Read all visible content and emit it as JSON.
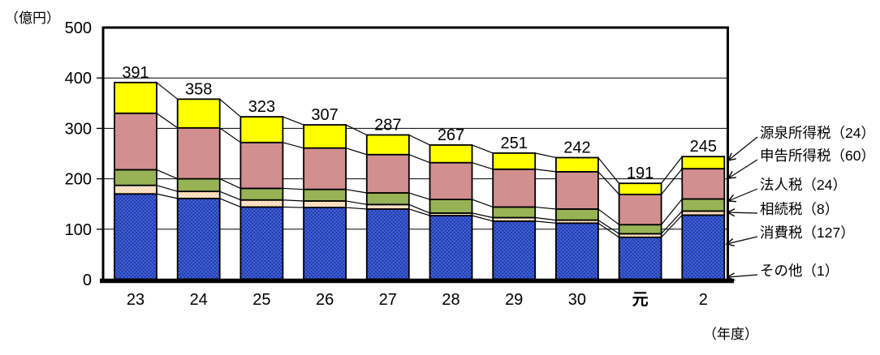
{
  "page": {
    "y_axis_unit": "（億円）",
    "x_axis_unit": "（年度）"
  },
  "chart_data": {
    "type": "bar",
    "stacked": true,
    "title": "",
    "y_axis_unit": "（億円）",
    "x_axis_unit": "（年度）",
    "ylim": [
      0,
      500
    ],
    "y_ticks": [
      0,
      100,
      200,
      300,
      400,
      500
    ],
    "grid": true,
    "legend_position": "right",
    "categories": [
      "23",
      "24",
      "25",
      "26",
      "27",
      "28",
      "29",
      "30",
      "元",
      "2"
    ],
    "bold_categories": [
      "元"
    ],
    "totals": [
      391,
      358,
      323,
      307,
      287,
      267,
      251,
      242,
      191,
      245
    ],
    "series": [
      {
        "name": "その他",
        "color": "#3D5EDF",
        "pattern": "blue-dots",
        "values": [
          1,
          1,
          1,
          1,
          1,
          1,
          1,
          1,
          1,
          1
        ]
      },
      {
        "name": "消費税",
        "color": "#3D5EDF",
        "pattern": "blue-dots",
        "values": [
          169,
          160,
          143,
          142,
          139,
          126,
          115,
          111,
          83,
          127
        ]
      },
      {
        "name": "相続税",
        "color": "#FBD5A9",
        "pattern": "white-dots",
        "values": [
          17,
          14,
          14,
          13,
          9,
          5,
          7,
          6,
          7,
          8
        ]
      },
      {
        "name": "法人税",
        "color": "#97B355",
        "pattern": "solid",
        "values": [
          31,
          25,
          23,
          23,
          23,
          27,
          21,
          22,
          18,
          24
        ]
      },
      {
        "name": "申告所得税",
        "color": "#D28F8F",
        "pattern": "solid",
        "values": [
          112,
          101,
          91,
          82,
          76,
          73,
          75,
          74,
          60,
          60
        ]
      },
      {
        "name": "源泉所得税",
        "color": "#FFFF00",
        "pattern": "solid",
        "values": [
          61,
          57,
          51,
          46,
          39,
          35,
          32,
          28,
          22,
          24
        ]
      }
    ],
    "legend": [
      {
        "name": "源泉所得税",
        "value": 24,
        "display": "源泉所得税（24）"
      },
      {
        "name": "申告所得税",
        "value": 60,
        "display": "申告所得税（60）"
      },
      {
        "name": "法人税",
        "value": 24,
        "display": "法人税（24）"
      },
      {
        "name": "相続税",
        "value": 8,
        "display": "相続税（8）"
      },
      {
        "name": "消費税",
        "value": 127,
        "display": "消費税（127）"
      },
      {
        "name": "その他",
        "value": 1,
        "display": "その他（1）"
      }
    ],
    "colors": {
      "outline": "#000000",
      "blue_dot": "#1A2E7E",
      "peach_dot": "#FFFFFF"
    }
  }
}
